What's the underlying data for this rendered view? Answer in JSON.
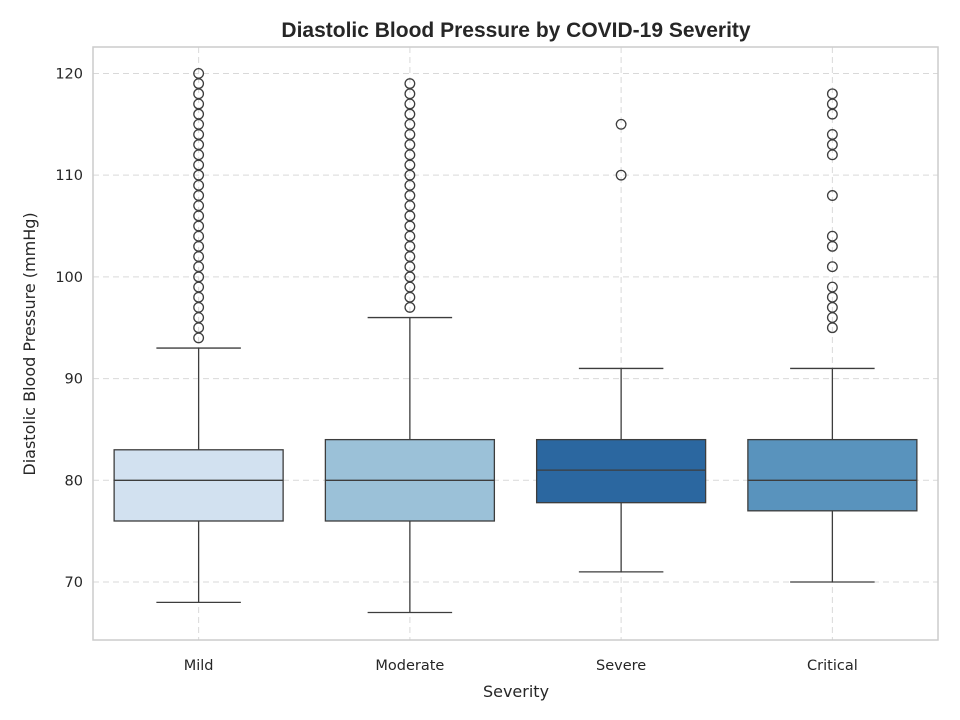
{
  "chart_data": {
    "type": "box",
    "title": "Diastolic Blood Pressure by COVID-19 Severity",
    "xlabel": "Severity",
    "ylabel": "Diastolic Blood Pressure (mmHg)",
    "ylim": [
      64.3,
      122.6
    ],
    "yticks": [
      70,
      80,
      90,
      100,
      110,
      120
    ],
    "grid": true,
    "categories": [
      "Mild",
      "Moderate",
      "Severe",
      "Critical"
    ],
    "colors": [
      "#d2e1f0",
      "#9bc1d8",
      "#2b67a0",
      "#5993bd"
    ],
    "boxes": [
      {
        "name": "Mild",
        "whisker_low": 68,
        "q1": 76,
        "median": 80,
        "q3": 83,
        "whisker_high": 93,
        "outliers": [
          94,
          95,
          96,
          97,
          98,
          99,
          100,
          101,
          102,
          103,
          104,
          105,
          106,
          107,
          108,
          109,
          110,
          111,
          112,
          113,
          114,
          115,
          116,
          117,
          118,
          119,
          120
        ]
      },
      {
        "name": "Moderate",
        "whisker_low": 67,
        "q1": 76,
        "median": 80,
        "q3": 84,
        "whisker_high": 96,
        "outliers": [
          97,
          98,
          99,
          100,
          101,
          102,
          103,
          104,
          105,
          106,
          107,
          108,
          109,
          110,
          111,
          112,
          113,
          114,
          115,
          116,
          117,
          118,
          119
        ]
      },
      {
        "name": "Severe",
        "whisker_low": 71,
        "q1": 77.8,
        "median": 81,
        "q3": 84,
        "whisker_high": 91,
        "outliers": [
          110,
          115
        ]
      },
      {
        "name": "Critical",
        "whisker_low": 70,
        "q1": 77,
        "median": 80,
        "q3": 84,
        "whisker_high": 91,
        "outliers": [
          95,
          96,
          97,
          98,
          99,
          101,
          103,
          104,
          108,
          112,
          113,
          114,
          116,
          117,
          118
        ]
      }
    ]
  }
}
